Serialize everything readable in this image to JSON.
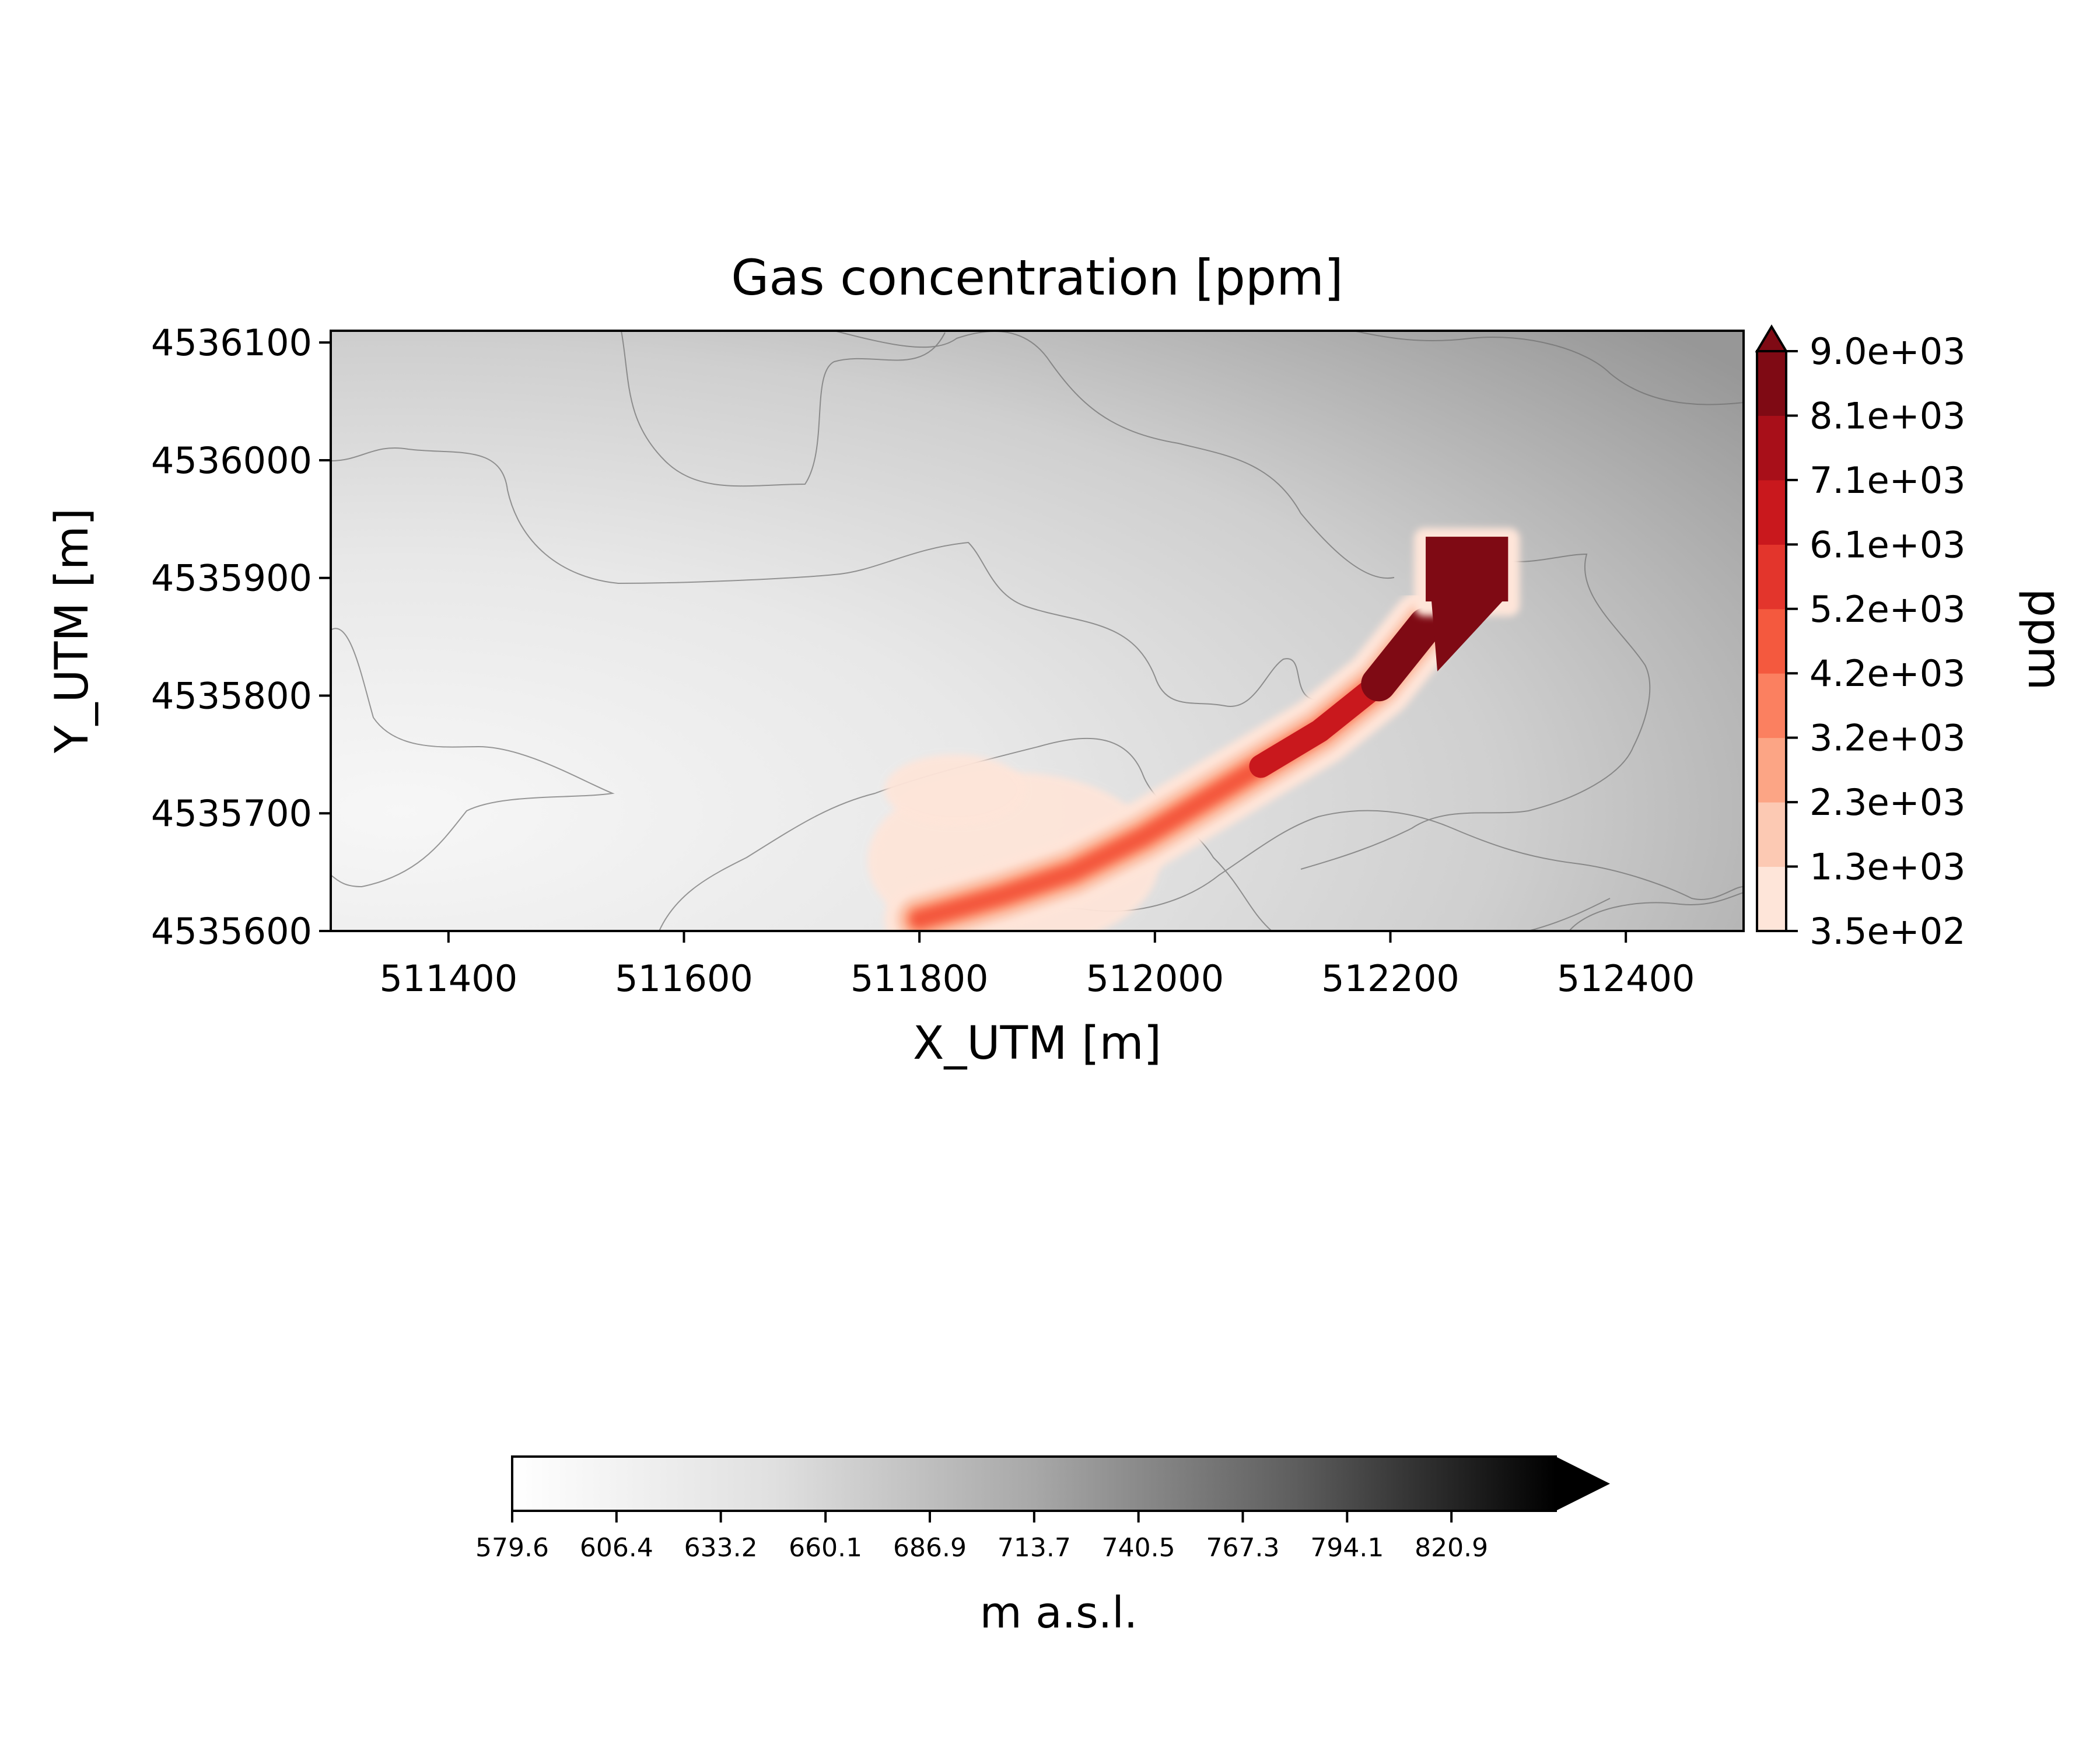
{
  "chart_data": {
    "type": "heatmap",
    "title": "Gas concentration [ppm]",
    "xlabel": "X_UTM [m]",
    "ylabel": "Y_UTM [m]",
    "xlim": [
      511300,
      512500
    ],
    "ylim": [
      4535600,
      4536110
    ],
    "x_ticks": [
      511400,
      511600,
      511800,
      512000,
      512200,
      512400
    ],
    "y_ticks": [
      4535600,
      4535700,
      4535800,
      4535900,
      4536000,
      4536100
    ],
    "grid": false,
    "concentration_colorbar": {
      "label": "ppm",
      "levels": [
        350,
        1300,
        2300,
        3200,
        4200,
        5200,
        6100,
        7100,
        8100,
        9000
      ],
      "tick_labels": [
        "3.5e+02",
        "1.3e+03",
        "2.3e+03",
        "3.2e+03",
        "4.2e+03",
        "5.2e+03",
        "6.1e+03",
        "7.1e+03",
        "8.1e+03",
        "9.0e+03"
      ],
      "colors": [
        "#fee5d9",
        "#fcc9b3",
        "#fca585",
        "#fb8060",
        "#f4593e",
        "#e3352c",
        "#c9181d",
        "#a80f19",
        "#7f0a14"
      ],
      "extend": "max",
      "placement": "right"
    },
    "elevation_colorbar": {
      "label": "m a.s.l.",
      "ticks": [
        579.6,
        606.4,
        633.2,
        660.1,
        686.9,
        713.7,
        740.5,
        767.3,
        794.1,
        820.9
      ],
      "tick_labels": [
        "579.6",
        "606.4",
        "633.2",
        "660.1",
        "686.9",
        "713.7",
        "740.5",
        "767.3",
        "794.1",
        "820.9"
      ],
      "range": [
        579.6,
        847.7
      ],
      "colormap": "Greys",
      "extend": "max",
      "placement": "bottom"
    },
    "plume_path": [
      {
        "x": 511800,
        "y": 4535610,
        "ppm": 800
      },
      {
        "x": 511870,
        "y": 4535630,
        "ppm": 1500
      },
      {
        "x": 511930,
        "y": 4535650,
        "ppm": 2300
      },
      {
        "x": 511990,
        "y": 4535680,
        "ppm": 3500
      },
      {
        "x": 512040,
        "y": 4535710,
        "ppm": 4800
      },
      {
        "x": 512090,
        "y": 4535740,
        "ppm": 5600
      },
      {
        "x": 512140,
        "y": 4535770,
        "ppm": 6500
      },
      {
        "x": 512190,
        "y": 4535810,
        "ppm": 7800
      },
      {
        "x": 512230,
        "y": 4535860,
        "ppm": 9000
      }
    ],
    "source_area": {
      "x_min": 512230,
      "x_max": 512300,
      "y_min": 4535880,
      "y_max": 4535935,
      "ppm": 9000
    }
  }
}
